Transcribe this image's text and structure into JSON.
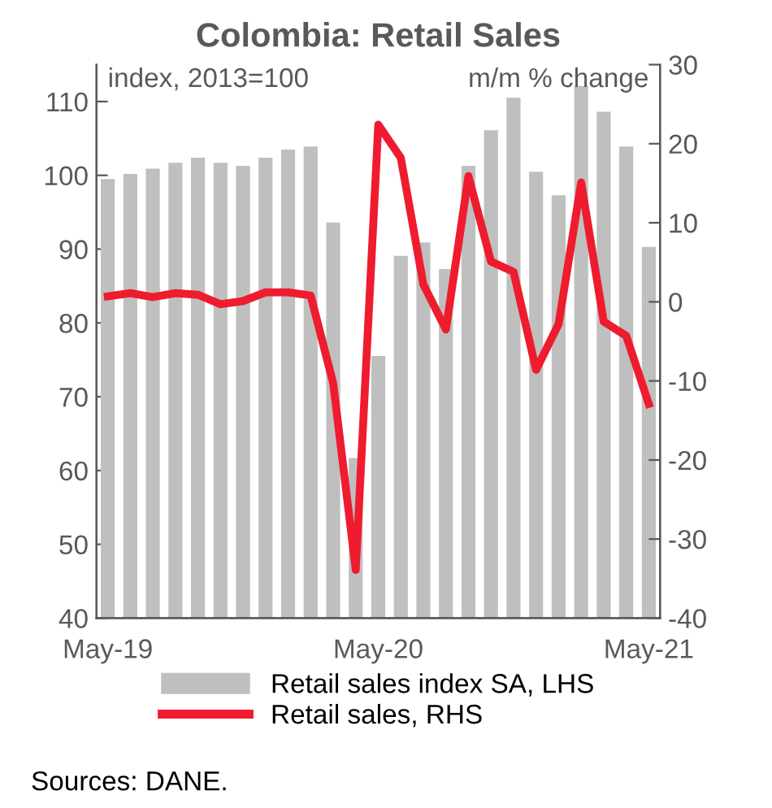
{
  "chart_data": {
    "type": "bar",
    "title": "Colombia: Retail Sales",
    "categories": [
      "May-19",
      null,
      null,
      null,
      null,
      null,
      null,
      null,
      null,
      null,
      null,
      null,
      "May-20",
      null,
      null,
      null,
      null,
      null,
      null,
      null,
      null,
      null,
      null,
      null,
      "May-21"
    ],
    "series": [
      {
        "name": "Retail sales index SA, LHS",
        "color": "#bfbfbf",
        "values": [
          99.5,
          100.2,
          100.9,
          101.7,
          102.4,
          101.7,
          101.3,
          102.4,
          103.5,
          103.9,
          93.6,
          61.7,
          75.5,
          89.1,
          90.9,
          87.3,
          101.3,
          106.1,
          110.5,
          100.5,
          97.3,
          112.1,
          108.6,
          103.9,
          90.3
        ]
      },
      {
        "name": "Retail sales, RHS",
        "type": "line",
        "axis": "y2",
        "color": "#ee1c2e",
        "values": [
          0.7,
          1.1,
          0.6,
          1.1,
          0.9,
          -0.3,
          0.1,
          1.2,
          1.2,
          0.8,
          -10.3,
          -33.9,
          22.4,
          18.2,
          2.2,
          -3.5,
          15.9,
          5.1,
          3.8,
          -8.6,
          -2.8,
          15.1,
          -2.5,
          -4.3,
          -12.9
        ]
      }
    ],
    "ylim": [
      40,
      115
    ],
    "yticks": [
      40,
      50,
      60,
      70,
      80,
      90,
      100,
      110
    ],
    "y2lim": [
      -40,
      30
    ],
    "y2ticks": [
      -40,
      -30,
      -20,
      -10,
      0,
      10,
      20,
      30
    ],
    "annotations": [
      "index, 2013=100",
      "m/m % change",
      "Sources: DANE."
    ],
    "legend": "bottom",
    "grid": false,
    "marker": "none",
    "line_style": "solid"
  }
}
